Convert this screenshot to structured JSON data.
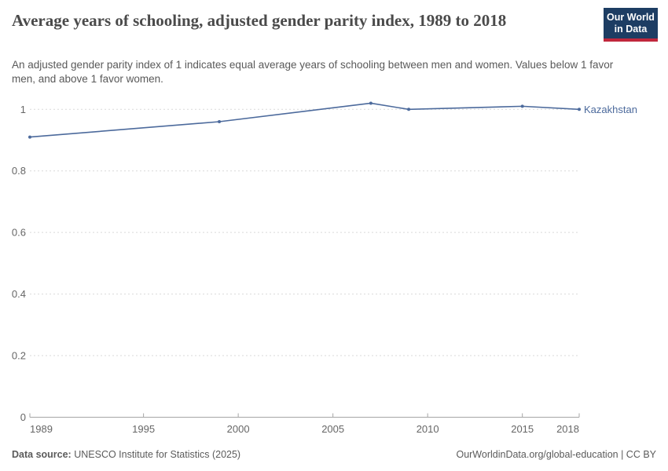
{
  "header": {
    "title": "Average years of schooling, adjusted gender parity index, 1989 to 2018",
    "subtitle": "An adjusted gender parity index of 1 indicates equal average years of schooling between men and women. Values below 1 favor men, and above 1 favor women.",
    "logo": {
      "line1": "Our World",
      "line2": "in Data",
      "bg_color": "#1d3d63",
      "accent_color": "#c0273c"
    }
  },
  "chart_data": {
    "type": "line",
    "title": "Average years of schooling, adjusted gender parity index, 1989 to 2018",
    "xlabel": "",
    "ylabel": "",
    "xlim": [
      1989,
      2018
    ],
    "ylim": [
      0,
      1.05
    ],
    "grid": "dashed horizontal",
    "legend_position": "end-of-line label",
    "x_ticks": [
      1989,
      1995,
      2000,
      2005,
      2010,
      2015,
      2018
    ],
    "x_tick_labels": [
      "1989",
      "1995",
      "2000",
      "2005",
      "2010",
      "2015",
      "2018"
    ],
    "y_ticks": [
      0,
      0.2,
      0.4,
      0.6,
      0.8,
      1
    ],
    "y_tick_labels": [
      "0",
      "0.2",
      "0.4",
      "0.6",
      "0.8",
      "1"
    ],
    "series": [
      {
        "name": "Kazakhstan",
        "color": "#4C6A9C",
        "points": [
          {
            "year": 1989,
            "value": 0.91
          },
          {
            "year": 1999,
            "value": 0.96
          },
          {
            "year": 2007,
            "value": 1.02
          },
          {
            "year": 2009,
            "value": 1.0
          },
          {
            "year": 2015,
            "value": 1.01
          },
          {
            "year": 2018,
            "value": 1.0
          }
        ]
      }
    ],
    "style": {
      "grid_color": "#d9d9d9",
      "axis_color": "#a5a5a5",
      "tick_label_color": "#666666"
    }
  },
  "footer": {
    "source_label": "Data source:",
    "source_text": "UNESCO Institute for Statistics (2025)",
    "attribution": "OurWorldinData.org/global-education | CC BY"
  }
}
